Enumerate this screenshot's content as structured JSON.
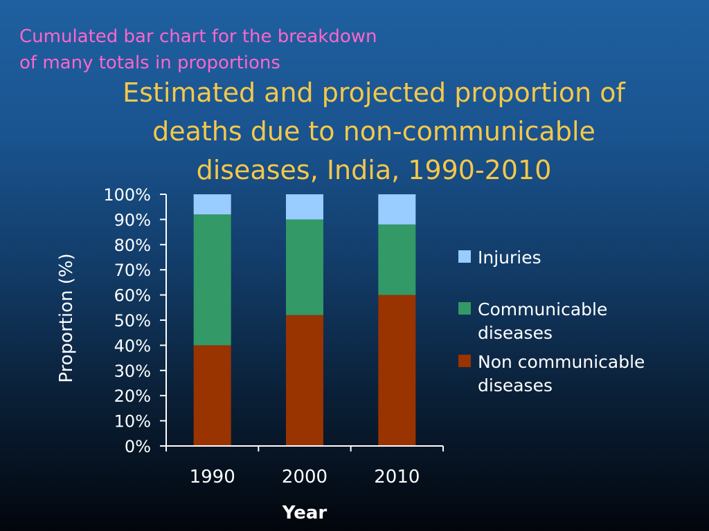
{
  "slide": {
    "subtitle": "Cumulated bar chart for the breakdown\nof many totals in proportions",
    "title": "Estimated and projected proportion of\ndeaths due to non-communicable\ndiseases, India, 1990-2010"
  },
  "chart_data": {
    "type": "bar",
    "stacked": true,
    "categories": [
      "1990",
      "2000",
      "2010"
    ],
    "series": [
      {
        "name": "Non communicable diseases",
        "values": [
          40,
          52,
          60
        ],
        "color": "#993300"
      },
      {
        "name": "Communicable diseases",
        "values": [
          52,
          38,
          28
        ],
        "color": "#339966"
      },
      {
        "name": "Injuries",
        "values": [
          8,
          10,
          12
        ],
        "color": "#99ccff"
      }
    ],
    "legend_order": [
      "Injuries",
      "Communicable diseases",
      "Non communicable diseases"
    ],
    "xlabel": "Year",
    "ylabel": "Proportion (%)",
    "ylim": [
      0,
      100
    ],
    "yticks": [
      "0%",
      "10%",
      "20%",
      "30%",
      "40%",
      "50%",
      "60%",
      "70%",
      "80%",
      "90%",
      "100%"
    ],
    "grid": false,
    "legend_position": "right",
    "axis_color": "#ffffff",
    "text_color": "#ffffff"
  }
}
